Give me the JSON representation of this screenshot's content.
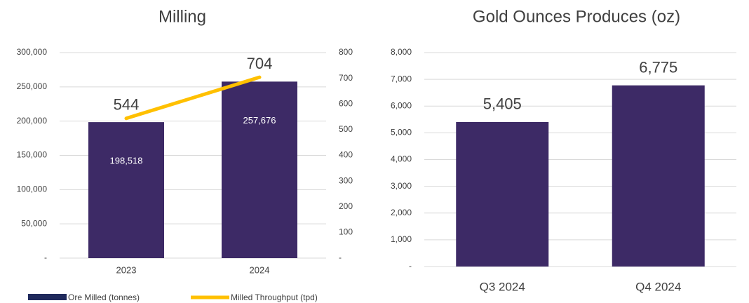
{
  "chart_data": [
    {
      "type": "bar",
      "title": "Milling",
      "categories": [
        "2023",
        "2024"
      ],
      "series": [
        {
          "name": "Ore Milled (tonnes)",
          "color": "#3d2a66",
          "values": [
            198518,
            257676
          ],
          "value_labels": [
            "198,518",
            "257,676"
          ]
        },
        {
          "name": "Milled Throughput (tpd)",
          "type": "line",
          "axis": "y2",
          "color": "#ffc000",
          "values": [
            544,
            704
          ]
        }
      ],
      "ylim": [
        0,
        300000
      ],
      "yticks": [
        {
          "value": 0,
          "label": "-"
        },
        {
          "value": 50000,
          "label": "50,000"
        },
        {
          "value": 100000,
          "label": "100,000"
        },
        {
          "value": 150000,
          "label": "150,000"
        },
        {
          "value": 200000,
          "label": "200,000"
        },
        {
          "value": 250000,
          "label": "250,000"
        },
        {
          "value": 300000,
          "label": "300,000"
        }
      ],
      "y2lim": [
        0,
        800
      ],
      "y2ticks": [
        {
          "value": 0,
          "label": "-"
        },
        100,
        200,
        300,
        400,
        500,
        600,
        700,
        800
      ],
      "grid": true,
      "legend": "bottom"
    },
    {
      "type": "bar",
      "title": "Gold Ounces Produces (oz)",
      "categories": [
        "Q3 2024",
        "Q4 2024"
      ],
      "series": [
        {
          "name": "Gold Ounces",
          "color": "#3d2a66",
          "values": [
            5405,
            6775
          ],
          "value_labels": [
            "5,405",
            "6,775"
          ]
        }
      ],
      "ylim": [
        0,
        8000
      ],
      "yticks": [
        {
          "value": 0,
          "label": "-"
        },
        {
          "value": 1000,
          "label": "1,000"
        },
        {
          "value": 2000,
          "label": "2,000"
        },
        {
          "value": 3000,
          "label": "3,000"
        },
        {
          "value": 4000,
          "label": "4,000"
        },
        {
          "value": 5000,
          "label": "5,000"
        },
        {
          "value": 6000,
          "label": "6,000"
        },
        {
          "value": 7000,
          "label": "7,000"
        },
        {
          "value": 8000,
          "label": "8,000"
        }
      ],
      "grid": true
    }
  ]
}
